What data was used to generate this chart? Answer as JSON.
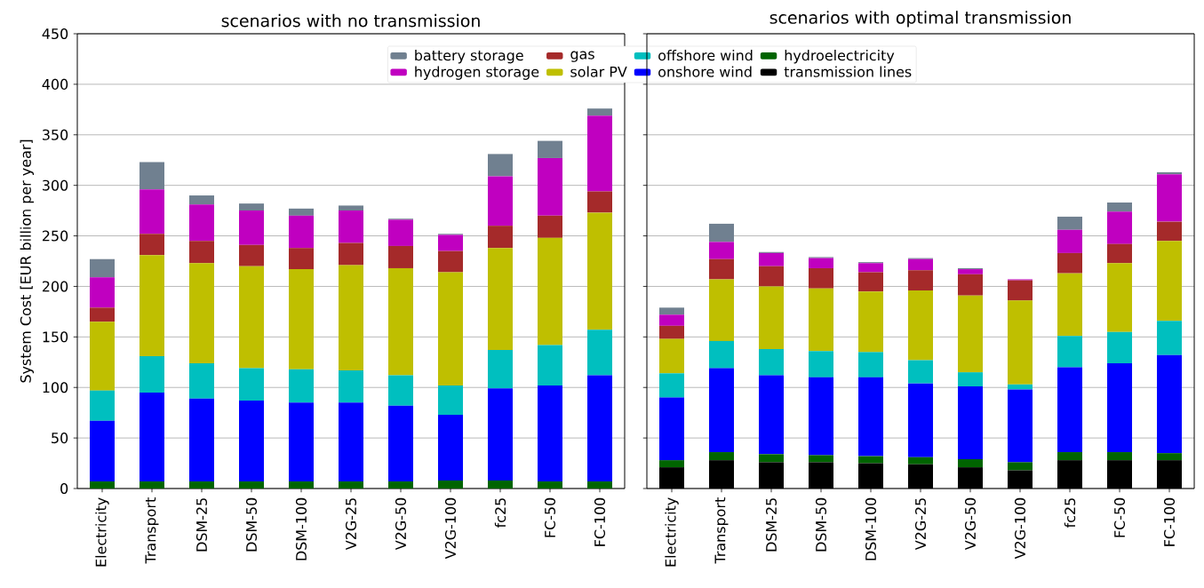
{
  "chart_data": [
    {
      "type": "bar",
      "stacked": true,
      "title": "scenarios with no transmission",
      "ylabel": "System Cost [EUR billion per year]",
      "categories": [
        "Electricity",
        "Transport",
        "DSM-25",
        "DSM-50",
        "DSM-100",
        "V2G-25",
        "V2G-50",
        "V2G-100",
        "fc25",
        "FC-50",
        "FC-100"
      ],
      "series": [
        {
          "name": "transmission lines",
          "color": "#000000",
          "values": [
            0,
            0,
            0,
            0,
            0,
            0,
            0,
            0,
            0,
            0,
            0
          ]
        },
        {
          "name": "hydroelectricity",
          "color": "#006400",
          "values": [
            7,
            7,
            7,
            7,
            7,
            7,
            7,
            8,
            8,
            7,
            7
          ]
        },
        {
          "name": "onshore wind",
          "color": "#0000ff",
          "values": [
            60,
            88,
            82,
            80,
            78,
            78,
            75,
            65,
            91,
            95,
            105
          ]
        },
        {
          "name": "offshore wind",
          "color": "#00bfbf",
          "values": [
            30,
            36,
            35,
            32,
            33,
            32,
            30,
            29,
            38,
            40,
            45
          ]
        },
        {
          "name": "solar PV",
          "color": "#bfbf00",
          "values": [
            68,
            100,
            99,
            101,
            99,
            104,
            106,
            112,
            101,
            106,
            116
          ]
        },
        {
          "name": "gas",
          "color": "#a52a2a",
          "values": [
            14,
            21,
            22,
            21,
            21,
            22,
            22,
            21,
            22,
            22,
            21
          ]
        },
        {
          "name": "hydrogen storage",
          "color": "#c000c0",
          "values": [
            30,
            44,
            36,
            34,
            32,
            32,
            26,
            16,
            49,
            57,
            75
          ]
        },
        {
          "name": "battery storage",
          "color": "#708090",
          "values": [
            18,
            27,
            9,
            7,
            7,
            5,
            1,
            1,
            22,
            17,
            7
          ]
        }
      ],
      "ylim": [
        0,
        450
      ],
      "yticks": [
        0,
        50,
        100,
        150,
        200,
        250,
        300,
        350,
        400,
        450
      ],
      "grid": "y",
      "legend": "top"
    },
    {
      "type": "bar",
      "stacked": true,
      "title": "scenarios with optimal transmission",
      "categories": [
        "Electricity",
        "Transport",
        "DSM-25",
        "DSM-50",
        "DSM-100",
        "V2G-25",
        "V2G-50",
        "V2G-100",
        "fc25",
        "FC-50",
        "FC-100"
      ],
      "series": [
        {
          "color": "#000000",
          "values": [
            21,
            28,
            26,
            26,
            25,
            24,
            21,
            18,
            28,
            28,
            28
          ]
        },
        {
          "color": "#006400",
          "values": [
            7,
            8,
            8,
            7,
            7,
            7,
            8,
            8,
            8,
            8,
            7
          ]
        },
        {
          "color": "#0000ff",
          "values": [
            62,
            83,
            78,
            77,
            78,
            73,
            72,
            72,
            84,
            88,
            97
          ]
        },
        {
          "color": "#00bfbf",
          "values": [
            24,
            27,
            26,
            26,
            25,
            23,
            14,
            5,
            31,
            31,
            34
          ]
        },
        {
          "color": "#bfbf00",
          "values": [
            34,
            61,
            62,
            62,
            60,
            69,
            76,
            83,
            62,
            68,
            79
          ]
        },
        {
          "color": "#a52a2a",
          "values": [
            13,
            20,
            20,
            20,
            19,
            20,
            21,
            20,
            20,
            19,
            19
          ]
        },
        {
          "color": "#c000c0",
          "values": [
            11,
            17,
            13,
            10,
            9,
            11,
            5,
            1,
            23,
            32,
            47
          ]
        },
        {
          "color": "#708090",
          "values": [
            7,
            18,
            1,
            1,
            1,
            1,
            1,
            0,
            13,
            9,
            2
          ]
        }
      ],
      "ylim": [
        0,
        450
      ],
      "yticks": [
        0,
        50,
        100,
        150,
        200,
        250,
        300,
        350,
        400,
        450
      ],
      "grid": "y",
      "tick_labels": "x"
    }
  ]
}
